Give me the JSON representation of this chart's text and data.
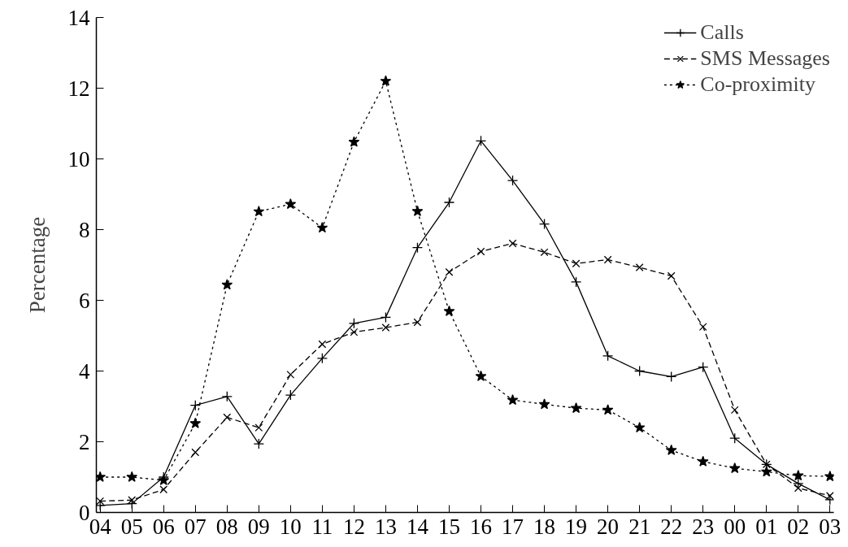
{
  "chart_data": {
    "type": "line",
    "ylabel": "Percentage",
    "categories": [
      "04",
      "05",
      "06",
      "07",
      "08",
      "09",
      "10",
      "11",
      "12",
      "13",
      "14",
      "15",
      "16",
      "17",
      "18",
      "19",
      "20",
      "21",
      "22",
      "23",
      "00",
      "01",
      "02",
      "03"
    ],
    "ylim": [
      0,
      14
    ],
    "yticks": [
      0,
      2,
      4,
      6,
      8,
      10,
      12,
      14
    ],
    "grid": false,
    "legend": "top right",
    "series": [
      {
        "name": "Calls",
        "color": "#000000",
        "marker": "cross",
        "line_style": "solid",
        "values": [
          0.2,
          0.25,
          1.0,
          3.03,
          3.28,
          1.94,
          3.32,
          4.36,
          5.35,
          5.52,
          7.49,
          8.77,
          10.51,
          9.39,
          8.16,
          6.52,
          4.43,
          4.0,
          3.84,
          4.11,
          2.1,
          1.36,
          0.82,
          0.36
        ]
      },
      {
        "name": "SMS Messages",
        "color": "#000000",
        "marker": "x",
        "line_style": "dashed",
        "values": [
          0.32,
          0.35,
          0.65,
          1.7,
          2.69,
          2.4,
          3.9,
          4.76,
          5.1,
          5.23,
          5.38,
          6.8,
          7.38,
          7.61,
          7.36,
          7.04,
          7.15,
          6.93,
          6.69,
          5.25,
          2.9,
          1.36,
          0.69,
          0.47
        ]
      },
      {
        "name": "Co-proximity",
        "color": "#000000",
        "marker": "star",
        "line_style": "dotted",
        "values": [
          1.0,
          1.0,
          0.91,
          2.52,
          6.44,
          8.51,
          8.72,
          8.05,
          10.48,
          12.2,
          8.52,
          5.69,
          3.85,
          3.18,
          3.06,
          2.95,
          2.9,
          2.4,
          1.76,
          1.44,
          1.25,
          1.15,
          1.04,
          1.02
        ]
      }
    ]
  }
}
